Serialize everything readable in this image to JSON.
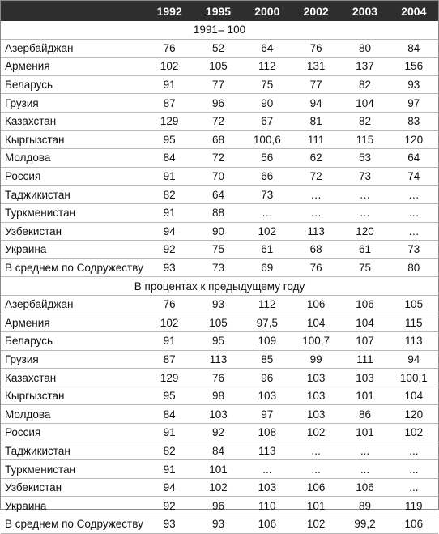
{
  "years": [
    "1992",
    "1995",
    "2000",
    "2002",
    "2003",
    "2004"
  ],
  "section1": {
    "title": "1991= 100",
    "rows": [
      {
        "name": "Азербайджан",
        "values": [
          "76",
          "52",
          "64",
          "76",
          "80",
          "84"
        ]
      },
      {
        "name": "Армения",
        "values": [
          "102",
          "105",
          "112",
          "131",
          "137",
          "156"
        ]
      },
      {
        "name": "Беларусь",
        "values": [
          "91",
          "77",
          "75",
          "77",
          "82",
          "93"
        ]
      },
      {
        "name": "Грузия",
        "values": [
          "87",
          "96",
          "90",
          "94",
          "104",
          "97"
        ]
      },
      {
        "name": "Казахстан",
        "values": [
          "129",
          "72",
          "67",
          "81",
          "82",
          "83"
        ]
      },
      {
        "name": "Кыргызстан",
        "values": [
          "95",
          "68",
          "100,6",
          "111",
          "115",
          "120"
        ]
      },
      {
        "name": "Молдова",
        "values": [
          "84",
          "72",
          "56",
          "62",
          "53",
          "64"
        ]
      },
      {
        "name": "Россия",
        "values": [
          "91",
          "70",
          "66",
          "72",
          "73",
          "74"
        ]
      },
      {
        "name": "Таджикистан",
        "values": [
          "82",
          "64",
          "73",
          "…",
          "…",
          "…"
        ]
      },
      {
        "name": "Туркменистан",
        "values": [
          "91",
          "88",
          "…",
          "…",
          "…",
          "…"
        ]
      },
      {
        "name": "Узбекистан",
        "values": [
          "94",
          "90",
          "102",
          "113",
          "120",
          "…"
        ]
      },
      {
        "name": "Украина",
        "values": [
          "92",
          "75",
          "61",
          "68",
          "61",
          "73"
        ]
      },
      {
        "name": "В среднем по Содружеству",
        "values": [
          "93",
          "73",
          "69",
          "76",
          "75",
          "80"
        ]
      }
    ]
  },
  "section2": {
    "title": "В процентах к предыдущему году",
    "rows": [
      {
        "name": "Азербайджан",
        "values": [
          "76",
          "93",
          "112",
          "106",
          "106",
          "105"
        ]
      },
      {
        "name": "Армения",
        "values": [
          "102",
          "105",
          "97,5",
          "104",
          "104",
          "115"
        ]
      },
      {
        "name": "Беларусь",
        "values": [
          "91",
          "95",
          "109",
          "100,7",
          "107",
          "113"
        ]
      },
      {
        "name": "Грузия",
        "values": [
          "87",
          "113",
          "85",
          "99",
          "111",
          "94"
        ]
      },
      {
        "name": "Казахстан",
        "values": [
          "129",
          "76",
          "96",
          "103",
          "103",
          "100,1"
        ]
      },
      {
        "name": "Кыргызстан",
        "values": [
          "95",
          "98",
          "103",
          "103",
          "101",
          "104"
        ]
      },
      {
        "name": "Молдова",
        "values": [
          "84",
          "103",
          "97",
          "103",
          "86",
          "120"
        ]
      },
      {
        "name": "Россия",
        "values": [
          "91",
          "92",
          "108",
          "102",
          "101",
          "102"
        ]
      },
      {
        "name": "Таджикистан",
        "values": [
          "82",
          "84",
          "113",
          "...",
          "...",
          "..."
        ]
      },
      {
        "name": "Туркменистан",
        "values": [
          "91",
          "101",
          "...",
          "...",
          "...",
          "..."
        ]
      },
      {
        "name": "Узбекистан",
        "values": [
          "94",
          "102",
          "103",
          "106",
          "106",
          "..."
        ]
      },
      {
        "name": "Украина",
        "values": [
          "92",
          "96",
          "110",
          "101",
          "89",
          "119"
        ]
      },
      {
        "name": "В среднем по Содружеству",
        "values": [
          "93",
          "93",
          "106",
          "102",
          "99,2",
          "106"
        ]
      }
    ]
  }
}
